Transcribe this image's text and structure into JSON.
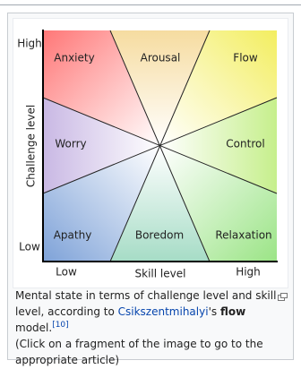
{
  "diagram": {
    "y_axis": {
      "label": "Challenge level",
      "high": "High",
      "low": "Low"
    },
    "x_axis": {
      "label": "Skill level",
      "low": "Low",
      "high": "High"
    },
    "regions": [
      "Anxiety",
      "Arousal",
      "Flow",
      "Worry",
      "Control",
      "Apathy",
      "Boredom",
      "Relaxation"
    ]
  },
  "caption": {
    "text_before": "Mental state in terms of challenge level and skill level, according to ",
    "link": "Csikszentmihalyi",
    "text_mid": "'s ",
    "bold": "flow",
    "text_after": " model.",
    "reference": "[10]",
    "note": "(Click on a fragment of the image to go to the appropriate article)"
  }
}
